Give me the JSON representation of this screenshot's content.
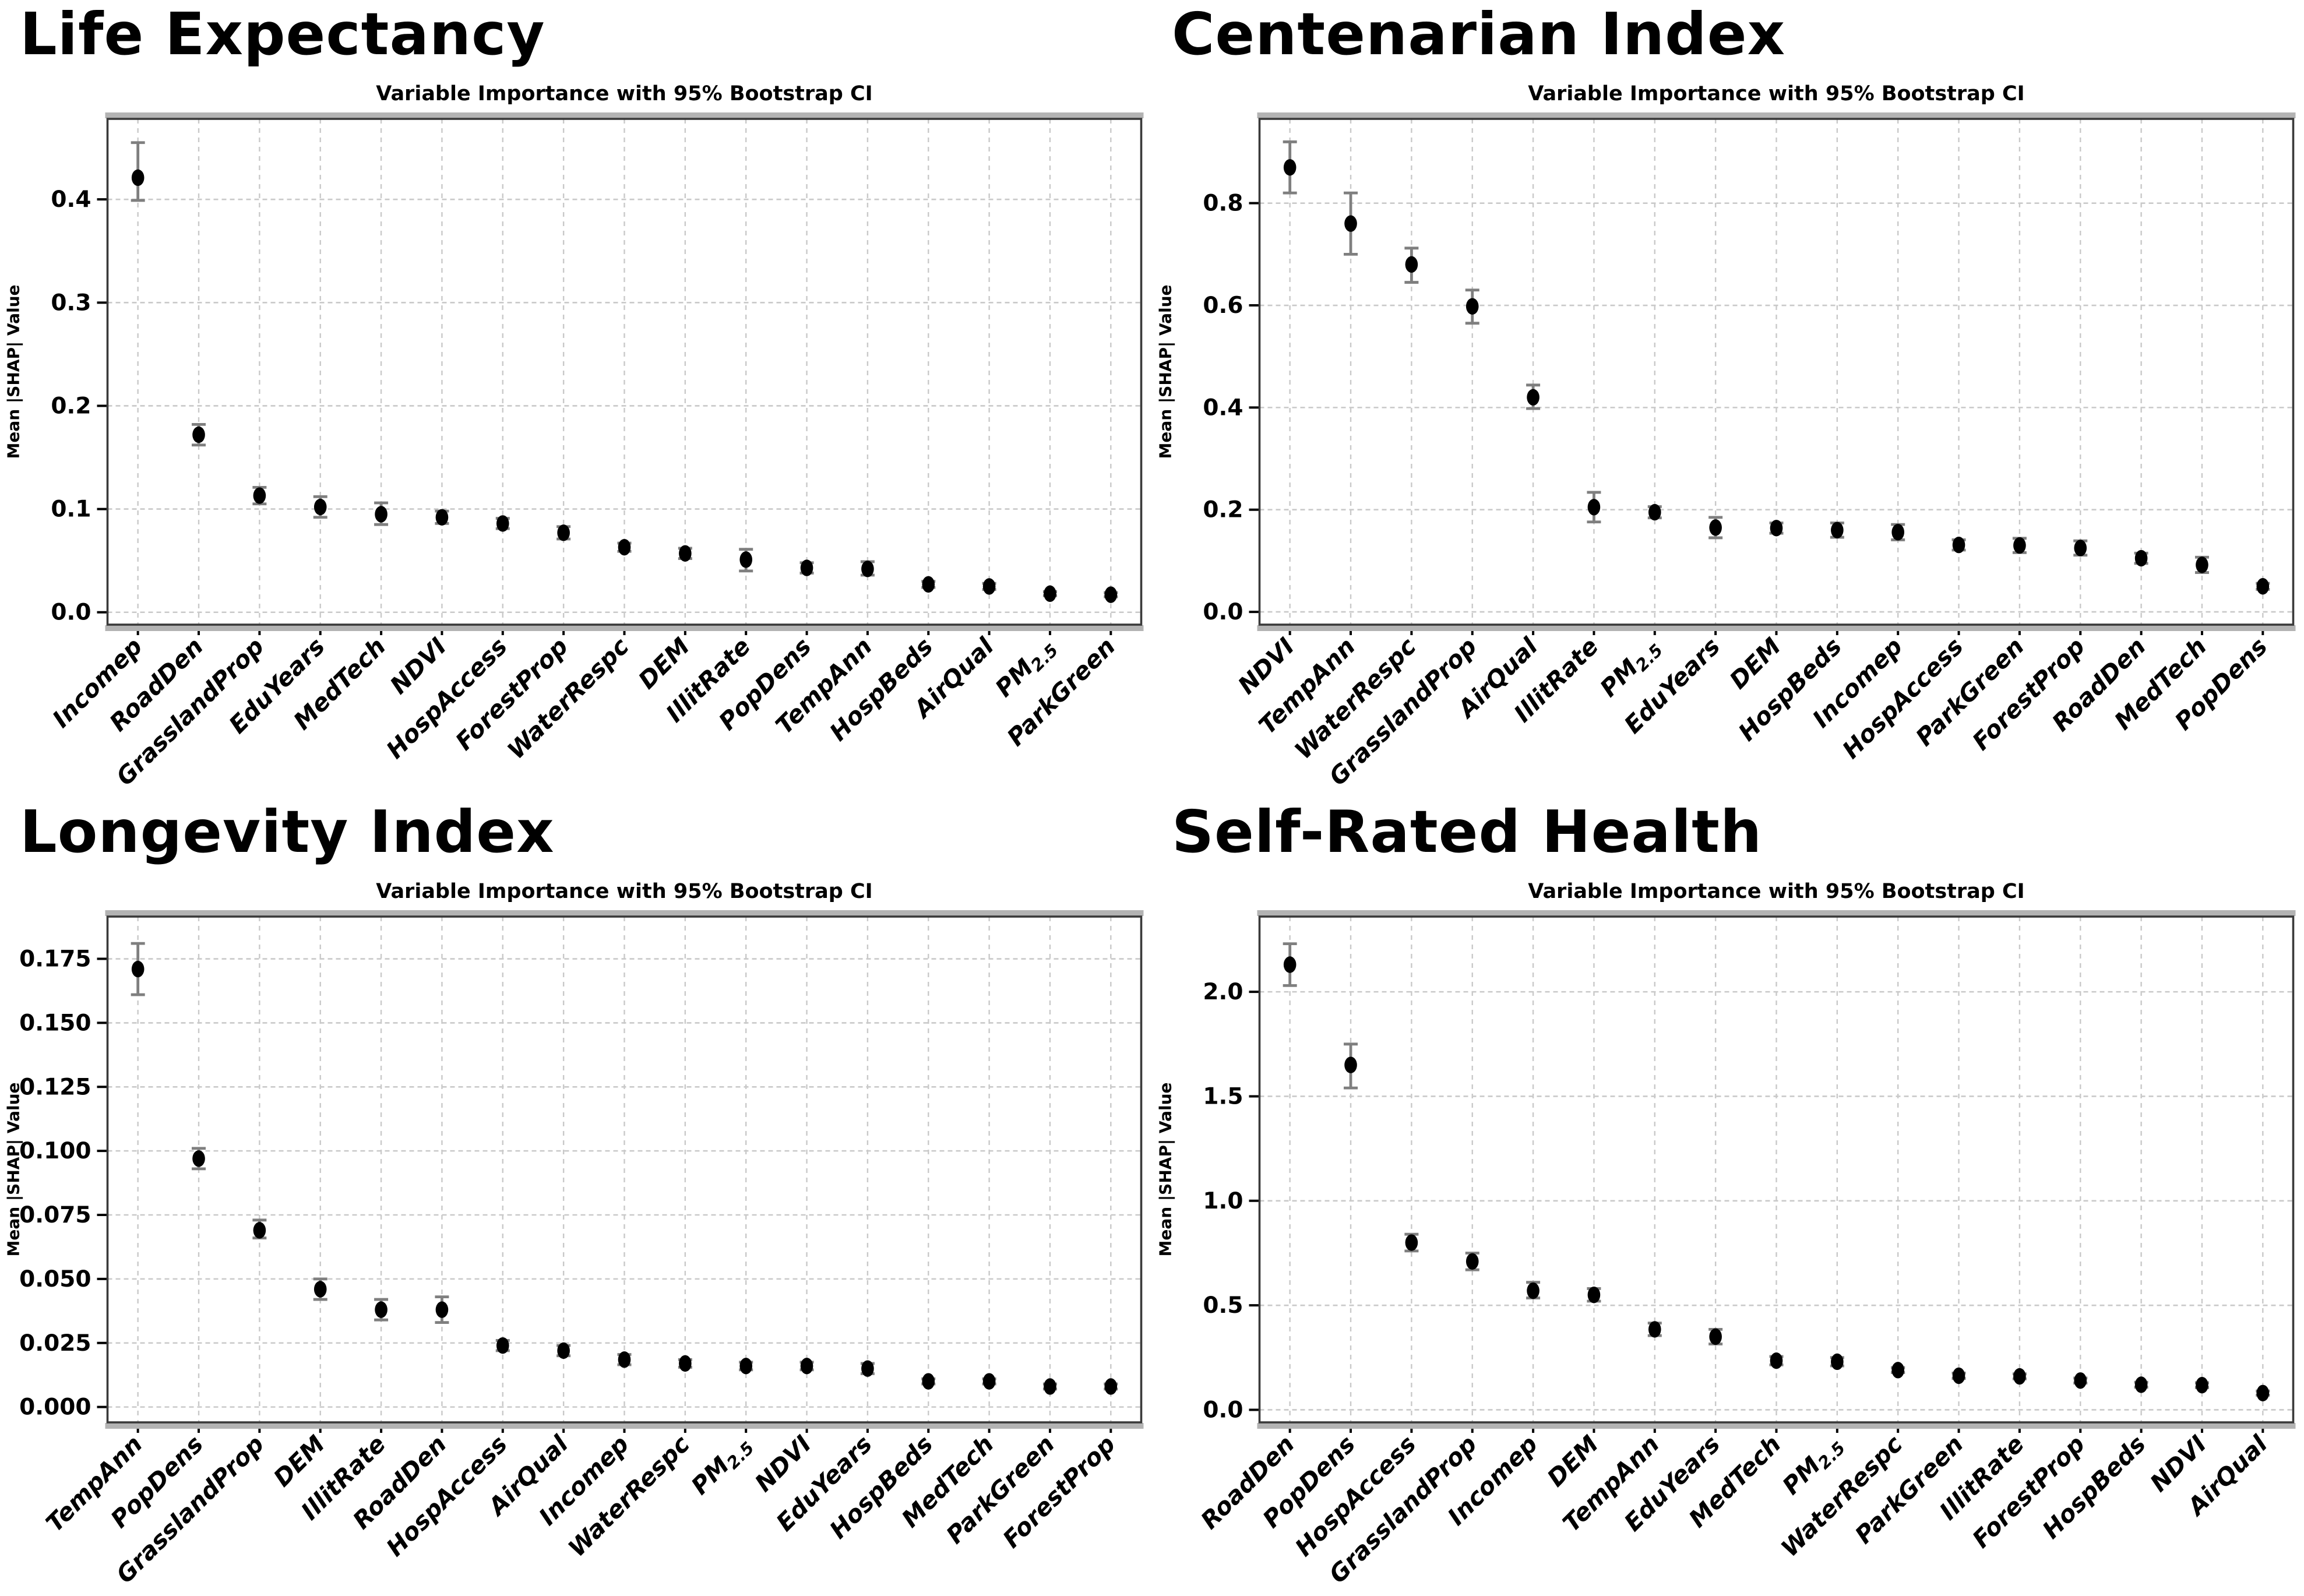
{
  "colors": {
    "background": "#ffffff",
    "point": "#000000",
    "error_bar": "#7f7f7f",
    "grid": "#c9c9c9",
    "spine": "#3a3a3a",
    "axis_shadow": "#b3b3b3",
    "text": "#000000"
  },
  "chart_data": [
    {
      "type": "scatter",
      "section_title": "Life Expectancy",
      "chart_title": "Variable Importance with 95% Bootstrap CI",
      "ylabel": "Mean |SHAP| Value",
      "legend": "none",
      "grid": "dashed both axes",
      "ylim": [
        -0.012,
        0.478
      ],
      "y_ticks": [
        0.0,
        0.1,
        0.2,
        0.3,
        0.4
      ],
      "y_tick_labels": [
        "0.0",
        "0.1",
        "0.2",
        "0.3",
        "0.4"
      ],
      "categories": [
        "Incomep",
        "RoadDen",
        "GrasslandProp",
        "EduYears",
        "MedTech",
        "NDVI",
        "HospAccess",
        "ForestProp",
        "WaterRespc",
        "DEM",
        "IllitRate",
        "PopDens",
        "TempAnn",
        "HospBeds",
        "AirQual",
        {
          "base": "PM",
          "sub": "2.5"
        },
        "ParkGreen"
      ],
      "values": [
        0.421,
        0.172,
        0.113,
        0.102,
        0.095,
        0.092,
        0.086,
        0.077,
        0.063,
        0.057,
        0.051,
        0.043,
        0.042,
        0.027,
        0.025,
        0.018,
        0.017
      ],
      "ci_low": [
        0.399,
        0.162,
        0.105,
        0.092,
        0.085,
        0.086,
        0.081,
        0.071,
        0.059,
        0.052,
        0.04,
        0.038,
        0.036,
        0.024,
        0.022,
        0.016,
        0.015
      ],
      "ci_high": [
        0.455,
        0.182,
        0.121,
        0.112,
        0.106,
        0.098,
        0.091,
        0.083,
        0.067,
        0.062,
        0.061,
        0.048,
        0.049,
        0.03,
        0.028,
        0.02,
        0.019
      ]
    },
    {
      "type": "scatter",
      "section_title": "Centenarian Index",
      "chart_title": "Variable Importance with 95% Bootstrap CI",
      "ylabel": "Mean |SHAP| Value",
      "legend": "none",
      "grid": "dashed both axes",
      "ylim": [
        -0.025,
        0.965
      ],
      "y_ticks": [
        0.0,
        0.2,
        0.4,
        0.6,
        0.8
      ],
      "y_tick_labels": [
        "0.0",
        "0.2",
        "0.4",
        "0.6",
        "0.8"
      ],
      "categories": [
        "NDVI",
        "TempAnn",
        "WaterRespc",
        "GrasslandProp",
        "AirQual",
        "IllitRate",
        {
          "base": "PM",
          "sub": "2.5"
        },
        "EduYears",
        "DEM",
        "HospBeds",
        "Incomep",
        "HospAccess",
        "ParkGreen",
        "ForestProp",
        "RoadDen",
        "MedTech",
        "PopDens"
      ],
      "values": [
        0.87,
        0.76,
        0.68,
        0.598,
        0.42,
        0.205,
        0.195,
        0.165,
        0.164,
        0.16,
        0.156,
        0.131,
        0.13,
        0.125,
        0.105,
        0.092,
        0.05
      ],
      "ci_low": [
        0.82,
        0.7,
        0.645,
        0.565,
        0.398,
        0.176,
        0.184,
        0.145,
        0.154,
        0.146,
        0.141,
        0.121,
        0.116,
        0.111,
        0.095,
        0.077,
        0.044
      ],
      "ci_high": [
        0.92,
        0.82,
        0.712,
        0.63,
        0.444,
        0.234,
        0.206,
        0.185,
        0.174,
        0.174,
        0.171,
        0.141,
        0.144,
        0.139,
        0.115,
        0.107,
        0.056
      ]
    },
    {
      "type": "scatter",
      "section_title": "Longevity Index",
      "chart_title": "Variable Importance with 95% Bootstrap CI",
      "ylabel": "Mean |SHAP| Value",
      "legend": "none",
      "grid": "dashed both axes",
      "ylim": [
        -0.006,
        0.1915
      ],
      "y_ticks": [
        0.0,
        0.025,
        0.05,
        0.075,
        0.1,
        0.125,
        0.15,
        0.175
      ],
      "y_tick_labels": [
        "0.000",
        "0.025",
        "0.050",
        "0.075",
        "0.100",
        "0.125",
        "0.150",
        "0.175"
      ],
      "categories": [
        "TempAnn",
        "PopDens",
        "GrasslandProp",
        "DEM",
        "IllitRate",
        "RoadDen",
        "HospAccess",
        "AirQual",
        "Incomep",
        "WaterRespc",
        {
          "base": "PM",
          "sub": "2.5"
        },
        "NDVI",
        "EduYears",
        "HospBeds",
        "MedTech",
        "ParkGreen",
        "ForestProp"
      ],
      "values": [
        0.171,
        0.097,
        0.069,
        0.046,
        0.038,
        0.038,
        0.024,
        0.022,
        0.0185,
        0.017,
        0.016,
        0.016,
        0.015,
        0.01,
        0.01,
        0.008,
        0.008
      ],
      "ci_low": [
        0.161,
        0.093,
        0.066,
        0.042,
        0.034,
        0.033,
        0.022,
        0.02,
        0.0165,
        0.0155,
        0.0145,
        0.0145,
        0.013,
        0.009,
        0.009,
        0.007,
        0.007
      ],
      "ci_high": [
        0.181,
        0.101,
        0.073,
        0.05,
        0.042,
        0.043,
        0.026,
        0.024,
        0.0205,
        0.0185,
        0.0175,
        0.0175,
        0.017,
        0.011,
        0.011,
        0.009,
        0.009
      ]
    },
    {
      "type": "scatter",
      "section_title": "Self-Rated Health",
      "chart_title": "Variable Importance with 95% Bootstrap CI",
      "ylabel": "Mean |SHAP| Value",
      "legend": "none",
      "grid": "dashed both axes",
      "ylim": [
        -0.06,
        2.36
      ],
      "y_ticks": [
        0.0,
        0.5,
        1.0,
        1.5,
        2.0
      ],
      "y_tick_labels": [
        "0.0",
        "0.5",
        "1.0",
        "1.5",
        "2.0"
      ],
      "categories": [
        "RoadDen",
        "PopDens",
        "HospAccess",
        "GrasslandProp",
        "Incomep",
        "DEM",
        "TempAnn",
        "EduYears",
        "MedTech",
        {
          "base": "PM",
          "sub": "2.5"
        },
        "WaterRespc",
        "ParkGreen",
        "IllitRate",
        "ForestProp",
        "HospBeds",
        "NDVI",
        "AirQual"
      ],
      "values": [
        2.13,
        1.65,
        0.8,
        0.71,
        0.57,
        0.55,
        0.385,
        0.35,
        0.235,
        0.23,
        0.19,
        0.163,
        0.16,
        0.14,
        0.12,
        0.118,
        0.08
      ],
      "ci_low": [
        2.03,
        1.54,
        0.76,
        0.67,
        0.535,
        0.52,
        0.355,
        0.315,
        0.215,
        0.21,
        0.178,
        0.15,
        0.148,
        0.128,
        0.108,
        0.106,
        0.07
      ],
      "ci_high": [
        2.23,
        1.75,
        0.84,
        0.75,
        0.61,
        0.58,
        0.415,
        0.385,
        0.255,
        0.25,
        0.202,
        0.176,
        0.172,
        0.152,
        0.132,
        0.13,
        0.09
      ]
    }
  ]
}
